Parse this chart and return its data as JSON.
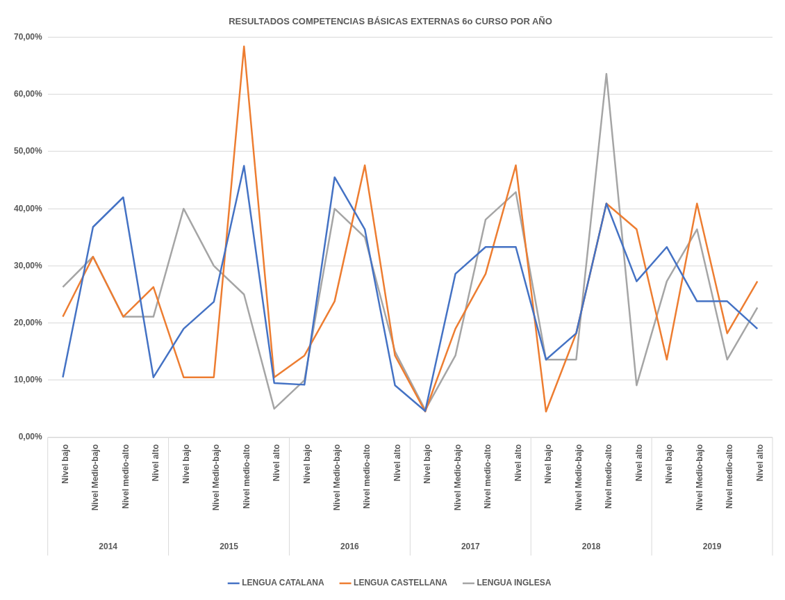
{
  "chart_data": {
    "type": "line",
    "title": "RESULTADOS COMPETENCIAS BÁSICAS EXTERNAS 6o CURSO POR AÑO",
    "categories": [
      "Nivel bajo",
      "Nivel Medio-bajo",
      "Nivel medio-alto",
      "Nivel alto",
      "Nivel bajo",
      "Nivel Medio-bajo",
      "Nivel medio-alto",
      "Nivel alto",
      "Nivel bajo",
      "Nivel Medio-bajo",
      "Nivel medio-alto",
      "Nivel alto",
      "Nivel bajo",
      "Nivel Medio-bajo",
      "Nivel medio-alto",
      "Nivel alto",
      "Nivel bajo",
      "Nivel Medio-bajo",
      "Nivel medio-alto",
      "Nivel alto",
      "Nivel bajo",
      "Nivel Medio-bajo",
      "Nivel medio-alto",
      "Nivel alto"
    ],
    "annotations": [
      "2014",
      "2015",
      "2016",
      "2017",
      "2018",
      "2019"
    ],
    "series": [
      {
        "name": "LENGUA CATALANA",
        "color": "#4472c4",
        "values": [
          10.5,
          36.8,
          42.0,
          10.5,
          19.0,
          23.7,
          47.5,
          9.5,
          9.2,
          45.5,
          36.4,
          9.1,
          4.6,
          28.6,
          33.3,
          33.3,
          13.6,
          18.2,
          40.9,
          27.3,
          33.3,
          23.8,
          23.8,
          19.0
        ]
      },
      {
        "name": "LENGUA CASTELLANA",
        "color": "#ed7d31",
        "values": [
          21.1,
          31.6,
          21.1,
          26.3,
          10.5,
          10.5,
          68.4,
          10.5,
          14.3,
          23.8,
          47.6,
          14.3,
          4.5,
          19.0,
          28.6,
          47.6,
          4.5,
          18.2,
          40.9,
          36.4,
          13.6,
          40.9,
          18.2,
          27.3
        ]
      },
      {
        "name": "LENGUA INGLESA",
        "color": "#a5a5a5",
        "values": [
          26.3,
          31.6,
          21.1,
          21.1,
          40.0,
          30.0,
          25.0,
          5.0,
          10.0,
          40.0,
          35.0,
          15.0,
          4.8,
          14.3,
          38.1,
          42.9,
          13.6,
          13.6,
          63.6,
          9.1,
          27.3,
          36.4,
          13.6,
          22.7
        ]
      }
    ],
    "ylim": [
      0,
      70
    ],
    "yticks": [
      {
        "value": 0,
        "label": "0,00%"
      },
      {
        "value": 10,
        "label": "10,00%"
      },
      {
        "value": 20,
        "label": "20,00%"
      },
      {
        "value": 30,
        "label": "30,00%"
      },
      {
        "value": 40,
        "label": "40,00%"
      },
      {
        "value": 50,
        "label": "50,00%"
      },
      {
        "value": 60,
        "label": "60,00%"
      },
      {
        "value": 70,
        "label": "70,00%"
      }
    ],
    "grid": "y",
    "legend": "bottom",
    "marker": "none",
    "line_style": "solid"
  }
}
